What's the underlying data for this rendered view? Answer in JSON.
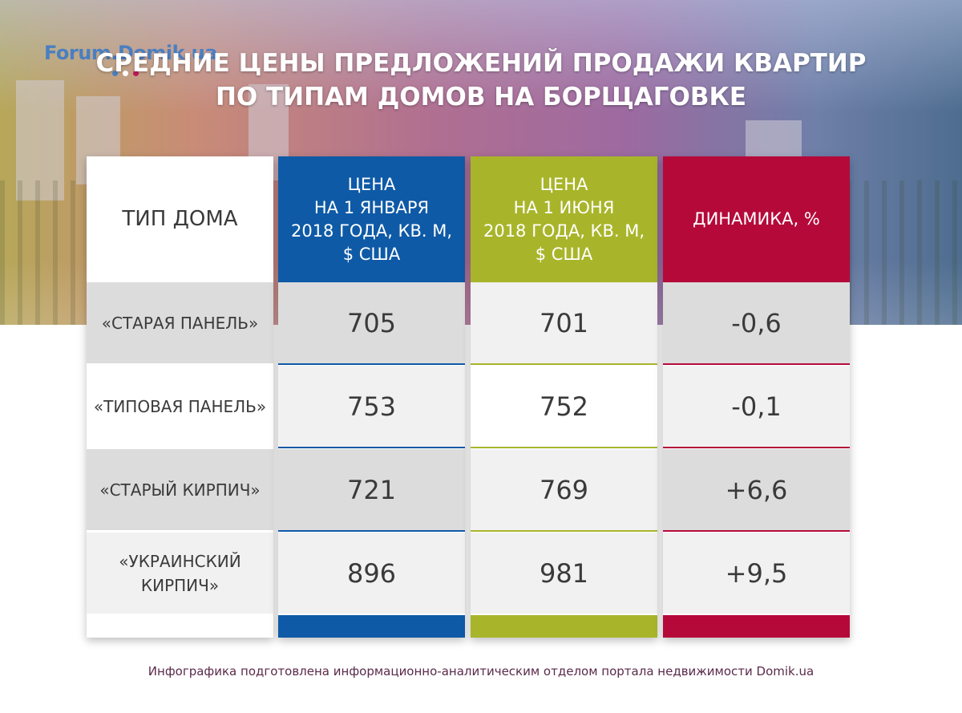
{
  "logo_text": "Forum.Domik.ua",
  "title_line1": "СРЕДНИЕ ЦЕНЫ ПРЕДЛОЖЕНИЙ ПРОДАЖИ КВАРТИР",
  "title_line2": "ПО ТИПАМ ДОМОВ НА БОРЩАГОВКЕ",
  "credit": "Инфографика подготовлена информационно-аналитическим отделом портала недвижимости Domik.ua",
  "colors": {
    "blue": "#0f5aa6",
    "green": "#a8b52a",
    "red": "#b5093a"
  },
  "chart_data": {
    "type": "table",
    "title": "СРЕДНИЕ ЦЕНЫ ПРЕДЛОЖЕНИЙ ПРОДАЖИ КВАРТИР ПО ТИПАМ ДОМОВ НА БОРЩАГОВКЕ",
    "headers": {
      "type": "ТИП ДОМА",
      "jan": [
        "ЦЕНА",
        "НА 1 ЯНВАРЯ",
        "2018 ГОДА, КВ. М,",
        "$ США"
      ],
      "jun": [
        "ЦЕНА",
        "НА 1 ИЮНЯ",
        "2018 ГОДА, КВ. М,",
        "$ США"
      ],
      "change": "ДИНАМИКА, %"
    },
    "rows": [
      {
        "label": [
          "«СТАРАЯ ПАНЕЛЬ»"
        ],
        "jan": "705",
        "jun": "701",
        "change": "-0,6"
      },
      {
        "label": [
          "«ТИПОВАЯ ПАНЕЛЬ»"
        ],
        "jan": "753",
        "jun": "752",
        "change": "-0,1"
      },
      {
        "label": [
          "«СТАРЫЙ КИРПИЧ»"
        ],
        "jan": "721",
        "jun": "769",
        "change": "+6,6"
      },
      {
        "label": [
          "«УКРАИНСКИЙ",
          "КИРПИЧ»"
        ],
        "jan": "896",
        "jun": "981",
        "change": "+9,5"
      }
    ]
  }
}
